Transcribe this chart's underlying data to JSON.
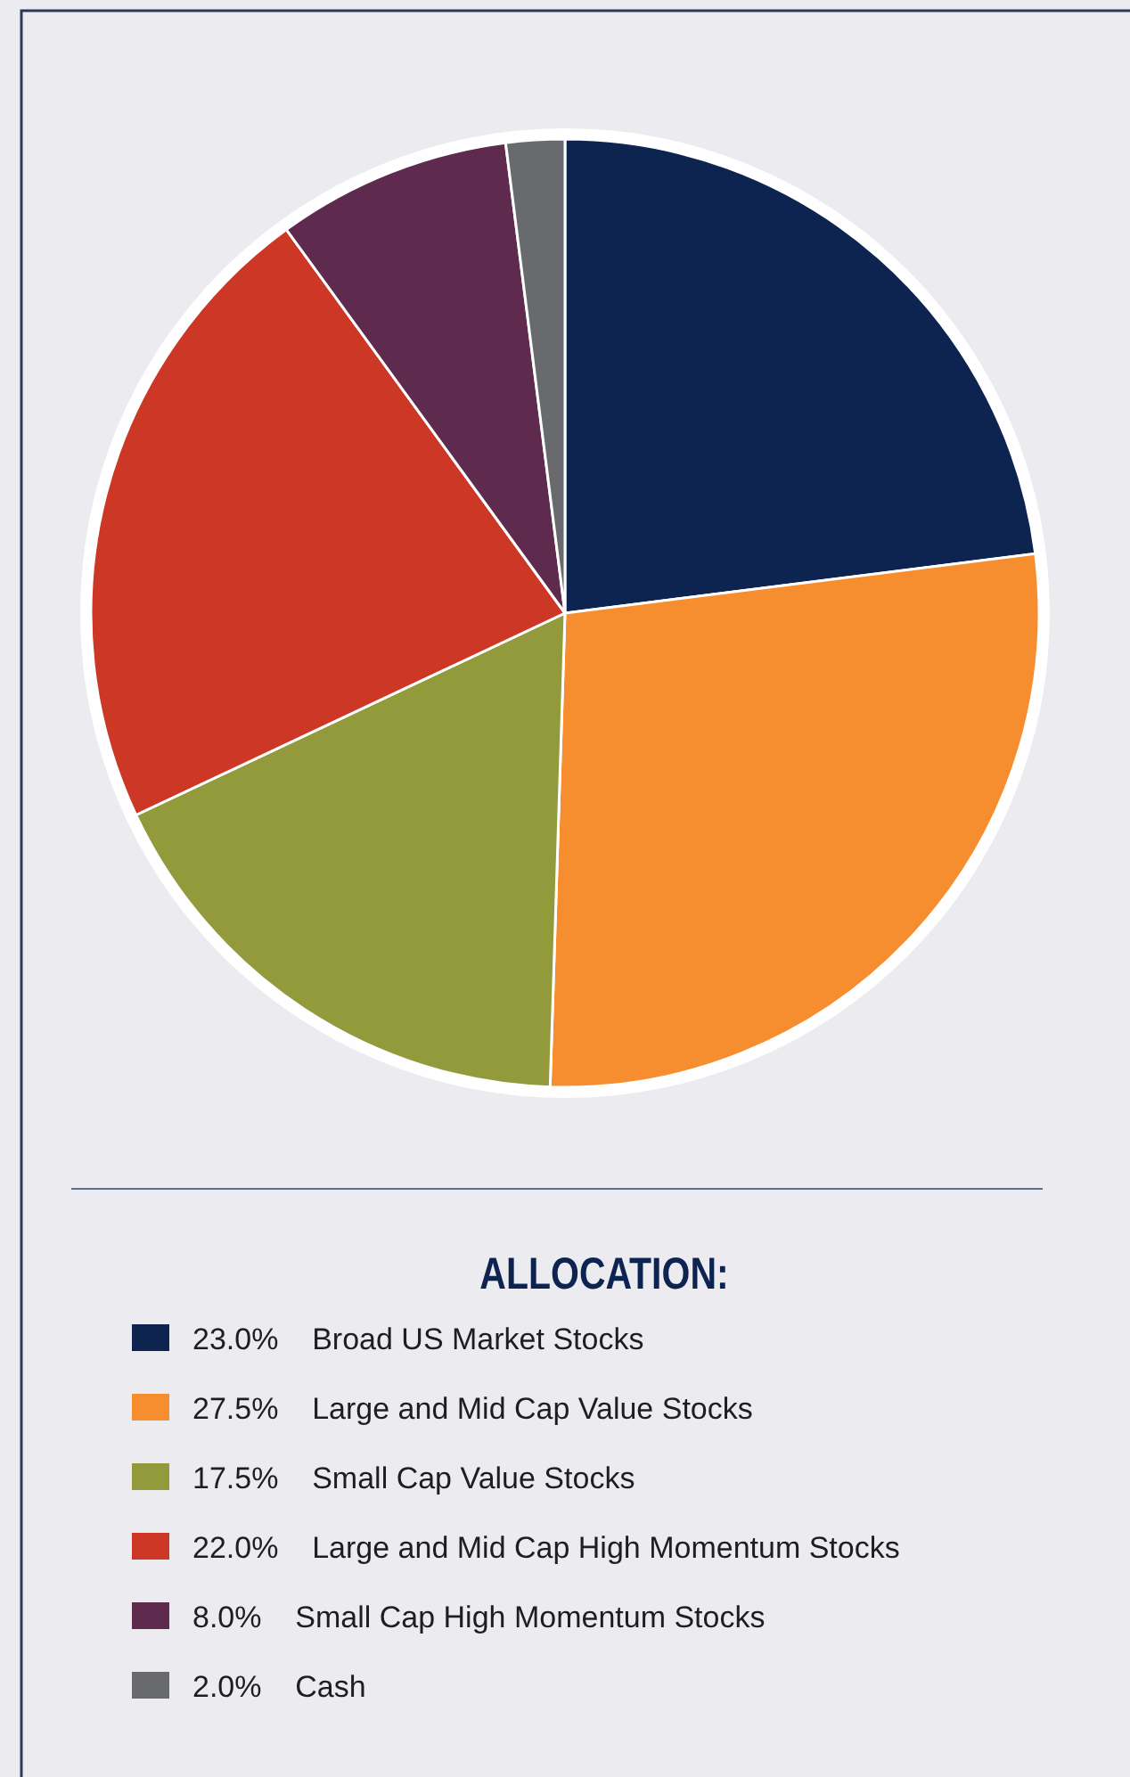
{
  "chart_data": {
    "type": "pie",
    "legend_title": "ALLOCATION:",
    "categories": [
      "23.0%    Broad US Market Stocks",
      "27.5%    Large and Mid Cap Value Stocks",
      "17.5%    Small Cap Value Stocks",
      "22.0%    Large and Mid Cap High Momentum Stocks",
      "8.0%    Small Cap High Momentum Stocks",
      "2.0%    Cash"
    ],
    "values": [
      23.0,
      27.5,
      17.5,
      22.0,
      8.0,
      2.0
    ],
    "colors": [
      "#0d2350",
      "#f68d2e",
      "#939a3c",
      "#cd3826",
      "#5e2a4e",
      "#696a6e"
    ],
    "legend": "bottom"
  }
}
